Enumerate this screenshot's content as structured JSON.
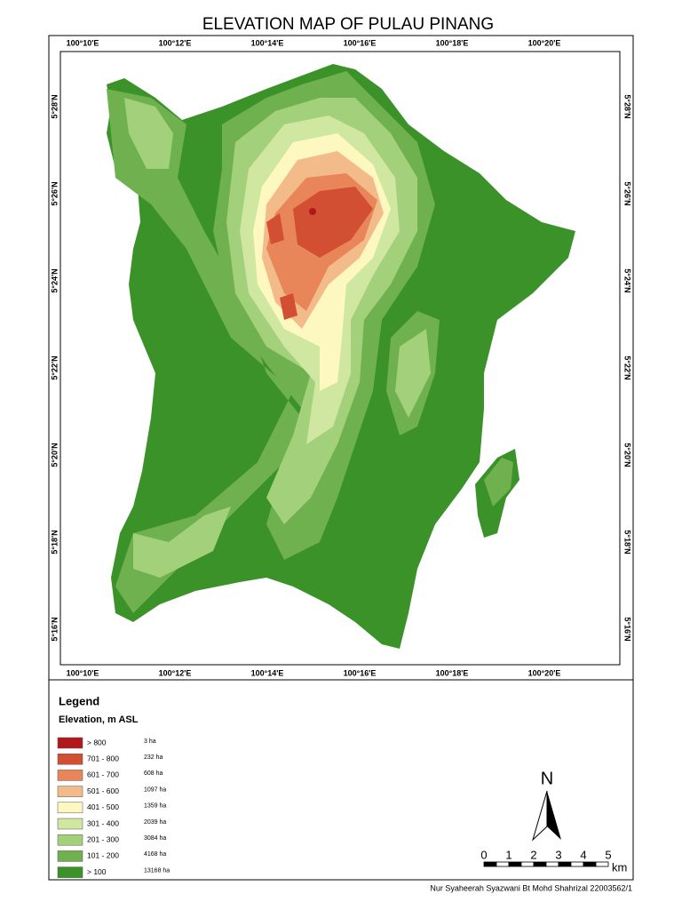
{
  "title": "ELEVATION MAP OF PULAU PINANG",
  "map": {
    "lon_labels": [
      "100°10'E",
      "100°12'E",
      "100°14'E",
      "100°16'E",
      "100°18'E",
      "100°20'E"
    ],
    "lat_labels": [
      "5°28'N",
      "5°26'N",
      "5°24'N",
      "5°22'N",
      "5°20'N",
      "5°18'N",
      "5°16'N"
    ]
  },
  "legend": {
    "title": "Legend",
    "subtitle": "Elevation, m ASL",
    "items": [
      {
        "range": "> 800",
        "area": "3 ha",
        "color": "#b2171b"
      },
      {
        "range": "701 - 800",
        "area": "232 ha",
        "color": "#d24f34"
      },
      {
        "range": "601 - 700",
        "area": "608 ha",
        "color": "#e8865a"
      },
      {
        "range": "501 - 600",
        "area": "1097 ha",
        "color": "#f4bb8a"
      },
      {
        "range": "401 - 500",
        "area": "1359 ha",
        "color": "#fdf8c0"
      },
      {
        "range": "301 - 400",
        "area": "2039 ha",
        "color": "#d0e7a2"
      },
      {
        "range": "201 - 300",
        "area": "3084 ha",
        "color": "#a3d07a"
      },
      {
        "range": "101 - 200",
        "area": "4168 ha",
        "color": "#6fb04f"
      },
      {
        "range": "> 100",
        "area": "13168 ha",
        "color": "#3a9229"
      }
    ]
  },
  "north_arrow": "N",
  "scale_bar": {
    "labels": [
      "0",
      "1",
      "2",
      "3",
      "4",
      "5"
    ],
    "unit": "km"
  },
  "credit": "Nur Syaheerah Syazwani Bt Mohd Shahrizal 22003562/1"
}
